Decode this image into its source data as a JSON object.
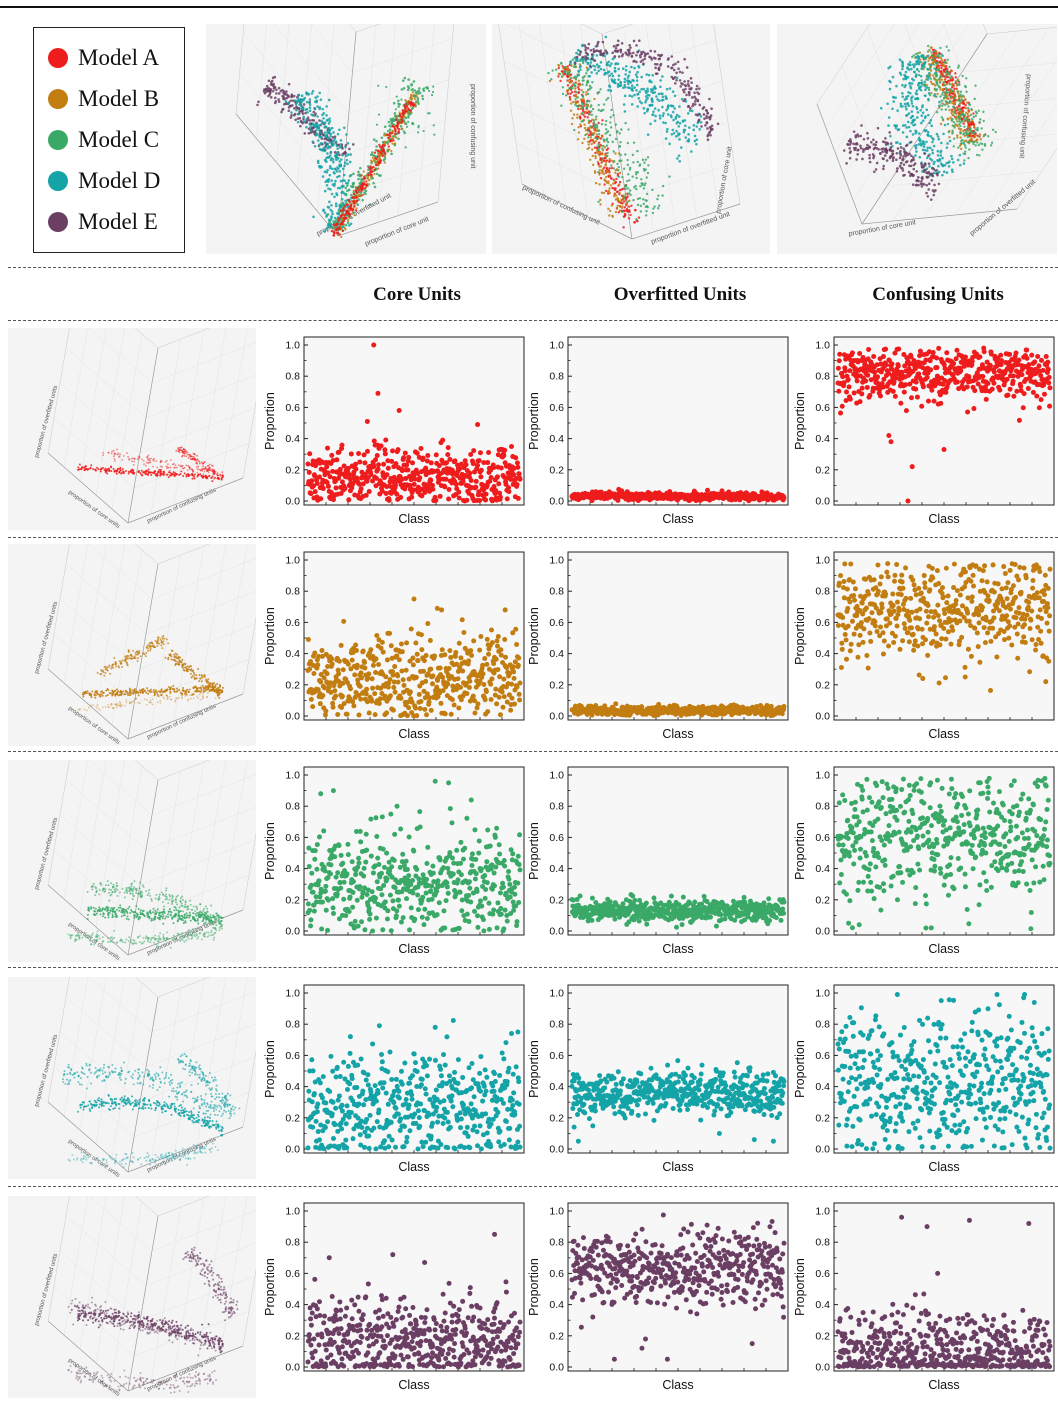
{
  "legend": {
    "items": [
      {
        "label": "Model A",
        "color": "#ee1c1c"
      },
      {
        "label": "Model B",
        "color": "#c27d11"
      },
      {
        "label": "Model C",
        "color": "#3aa968"
      },
      {
        "label": "Model D",
        "color": "#14a3a7"
      },
      {
        "label": "Model E",
        "color": "#6b3f64"
      }
    ]
  },
  "column_titles": [
    "Core Units",
    "Overfitted Units",
    "Confusing Units"
  ],
  "axes_3d": {
    "overfitted": "proportion of overfitted unit",
    "core": "proportion of core unit",
    "confusing": "proportion of confusing unit",
    "overfitted_plural": "proportion of overfitted units",
    "core_plural": "proportion of core units",
    "confusing_plural": "proportion of confusing units"
  },
  "chart_data": [
    {
      "type": "scatter",
      "model": "Model A",
      "panel": "Core Units",
      "xlabel": "Class",
      "ylabel": "Proportion",
      "ylim": [
        0,
        1
      ],
      "yticks": [
        "0.0",
        "0.2",
        "0.4",
        "0.6",
        "0.8",
        "1.0"
      ],
      "n": 500,
      "mean": 0.15,
      "spread": 0.09,
      "min": 0.0,
      "outliers": [
        [
          0.31,
          1.0
        ],
        [
          0.33,
          0.69
        ],
        [
          0.43,
          0.58
        ],
        [
          0.28,
          0.51
        ],
        [
          0.8,
          0.49
        ]
      ]
    },
    {
      "type": "scatter",
      "model": "Model A",
      "panel": "Overfitted Units",
      "xlabel": "Class",
      "ylabel": "Proportion",
      "ylim": [
        0,
        1
      ],
      "yticks": [
        "0.0",
        "0.2",
        "0.4",
        "0.6",
        "0.8",
        "1.0"
      ],
      "n": 500,
      "mean": 0.03,
      "spread": 0.012,
      "min": 0.0,
      "outliers": []
    },
    {
      "type": "scatter",
      "model": "Model A",
      "panel": "Confusing Units",
      "xlabel": "Class",
      "ylabel": "Proportion",
      "ylim": [
        0,
        1
      ],
      "yticks": [
        "0.0",
        "0.2",
        "0.4",
        "0.6",
        "0.8",
        "1.0"
      ],
      "n": 500,
      "mean": 0.82,
      "spread": 0.09,
      "min": 0.0,
      "outliers": [
        [
          0.33,
          0.0
        ],
        [
          0.35,
          0.22
        ],
        [
          0.5,
          0.33
        ],
        [
          0.25,
          0.38
        ],
        [
          0.24,
          0.42
        ]
      ]
    },
    {
      "type": "scatter",
      "model": "Model B",
      "panel": "Core Units",
      "xlabel": "Class",
      "ylabel": "Proportion",
      "ylim": [
        0,
        1
      ],
      "yticks": [
        "0.0",
        "0.2",
        "0.4",
        "0.6",
        "0.8",
        "1.0"
      ],
      "n": 500,
      "mean": 0.25,
      "spread": 0.14,
      "min": 0.0,
      "outliers": [
        [
          0.5,
          0.75
        ],
        [
          0.61,
          0.69
        ],
        [
          0.63,
          0.68
        ],
        [
          0.93,
          0.68
        ]
      ]
    },
    {
      "type": "scatter",
      "model": "Model B",
      "panel": "Overfitted Units",
      "xlabel": "Class",
      "ylabel": "Proportion",
      "ylim": [
        0,
        1
      ],
      "yticks": [
        "0.0",
        "0.2",
        "0.4",
        "0.6",
        "0.8",
        "1.0"
      ],
      "n": 500,
      "mean": 0.035,
      "spread": 0.015,
      "min": 0.0,
      "outliers": []
    },
    {
      "type": "scatter",
      "model": "Model B",
      "panel": "Confusing Units",
      "xlabel": "Class",
      "ylabel": "Proportion",
      "ylim": [
        0,
        1
      ],
      "yticks": [
        "0.0",
        "0.2",
        "0.4",
        "0.6",
        "0.8",
        "1.0"
      ],
      "n": 500,
      "mean": 0.68,
      "spread": 0.16,
      "min": 0.0,
      "outliers": [
        [
          0.4,
          0.24
        ],
        [
          0.6,
          0.25
        ],
        [
          0.98,
          0.22
        ]
      ]
    },
    {
      "type": "scatter",
      "model": "Model C",
      "panel": "Core Units",
      "xlabel": "Class",
      "ylabel": "Proportion",
      "ylim": [
        0,
        1
      ],
      "yticks": [
        "0.0",
        "0.2",
        "0.4",
        "0.6",
        "0.8",
        "1.0"
      ],
      "n": 500,
      "mean": 0.3,
      "spread": 0.17,
      "min": 0.0,
      "outliers": [
        [
          0.06,
          0.88
        ],
        [
          0.12,
          0.9
        ],
        [
          0.6,
          0.96
        ],
        [
          0.42,
          0.8
        ],
        [
          0.77,
          0.84
        ]
      ]
    },
    {
      "type": "scatter",
      "model": "Model C",
      "panel": "Overfitted Units",
      "xlabel": "Class",
      "ylabel": "Proportion",
      "ylim": [
        0,
        1
      ],
      "yticks": [
        "0.0",
        "0.2",
        "0.4",
        "0.6",
        "0.8",
        "1.0"
      ],
      "n": 500,
      "mean": 0.13,
      "spread": 0.035,
      "min": 0.0,
      "outliers": []
    },
    {
      "type": "scatter",
      "model": "Model C",
      "panel": "Confusing Units",
      "xlabel": "Class",
      "ylabel": "Proportion",
      "ylim": [
        0,
        1
      ],
      "yticks": [
        "0.0",
        "0.2",
        "0.4",
        "0.6",
        "0.8",
        "1.0"
      ],
      "n": 500,
      "mean": 0.6,
      "spread": 0.2,
      "min": 0.0,
      "outliers": [
        [
          0.05,
          0.05
        ],
        [
          0.1,
          0.04
        ],
        [
          0.44,
          0.02
        ]
      ]
    },
    {
      "type": "scatter",
      "model": "Model D",
      "panel": "Core Units",
      "xlabel": "Class",
      "ylabel": "Proportion",
      "ylim": [
        0,
        1
      ],
      "yticks": [
        "0.0",
        "0.2",
        "0.4",
        "0.6",
        "0.8",
        "1.0"
      ],
      "n": 500,
      "mean": 0.27,
      "spread": 0.18,
      "min": 0.0,
      "outliers": [
        [
          0.2,
          0.72
        ],
        [
          0.6,
          0.78
        ],
        [
          0.96,
          0.74
        ],
        [
          0.99,
          0.75
        ]
      ]
    },
    {
      "type": "scatter",
      "model": "Model D",
      "panel": "Overfitted Units",
      "xlabel": "Class",
      "ylabel": "Proportion",
      "ylim": [
        0,
        1
      ],
      "yticks": [
        "0.0",
        "0.2",
        "0.4",
        "0.6",
        "0.8",
        "1.0"
      ],
      "n": 500,
      "mean": 0.36,
      "spread": 0.07,
      "min": 0.0,
      "outliers": [
        [
          0.03,
          0.05
        ],
        [
          0.95,
          0.05
        ],
        [
          0.86,
          0.06
        ],
        [
          0.01,
          0.14
        ]
      ]
    },
    {
      "type": "scatter",
      "model": "Model D",
      "panel": "Confusing Units",
      "xlabel": "Class",
      "ylabel": "Proportion",
      "ylim": [
        0,
        1
      ],
      "yticks": [
        "0.0",
        "0.2",
        "0.4",
        "0.6",
        "0.8",
        "1.0"
      ],
      "n": 500,
      "mean": 0.4,
      "spread": 0.24,
      "min": 0.0,
      "outliers": [
        [
          0.28,
          0.99
        ],
        [
          0.75,
          0.99
        ],
        [
          0.88,
          0.99
        ]
      ]
    },
    {
      "type": "scatter",
      "model": "Model E",
      "panel": "Core Units",
      "xlabel": "Class",
      "ylabel": "Proportion",
      "ylim": [
        0,
        1
      ],
      "yticks": [
        "0.0",
        "0.2",
        "0.4",
        "0.6",
        "0.8",
        "1.0"
      ],
      "n": 500,
      "mean": 0.17,
      "spread": 0.15,
      "min": 0.0,
      "outliers": [
        [
          0.88,
          0.85
        ],
        [
          0.4,
          0.72
        ],
        [
          0.55,
          0.67
        ]
      ]
    },
    {
      "type": "scatter",
      "model": "Model E",
      "panel": "Overfitted Units",
      "xlabel": "Class",
      "ylabel": "Proportion",
      "ylim": [
        0,
        1
      ],
      "yticks": [
        "0.0",
        "0.2",
        "0.4",
        "0.6",
        "0.8",
        "1.0"
      ],
      "n": 500,
      "mean": 0.63,
      "spread": 0.12,
      "min": 0.0,
      "outliers": [
        [
          0.2,
          0.05
        ],
        [
          0.45,
          0.05
        ],
        [
          0.33,
          0.12
        ],
        [
          0.85,
          0.15
        ]
      ]
    },
    {
      "type": "scatter",
      "model": "Model E",
      "panel": "Confusing Units",
      "xlabel": "Class",
      "ylabel": "Proportion",
      "ylim": [
        0,
        1
      ],
      "yticks": [
        "0.0",
        "0.2",
        "0.4",
        "0.6",
        "0.8",
        "1.0"
      ],
      "n": 500,
      "mean": 0.1,
      "spread": 0.13,
      "min": 0.0,
      "outliers": [
        [
          0.3,
          0.96
        ],
        [
          0.62,
          0.94
        ],
        [
          0.9,
          0.92
        ],
        [
          0.42,
          0.9
        ],
        [
          0.47,
          0.6
        ]
      ]
    }
  ]
}
